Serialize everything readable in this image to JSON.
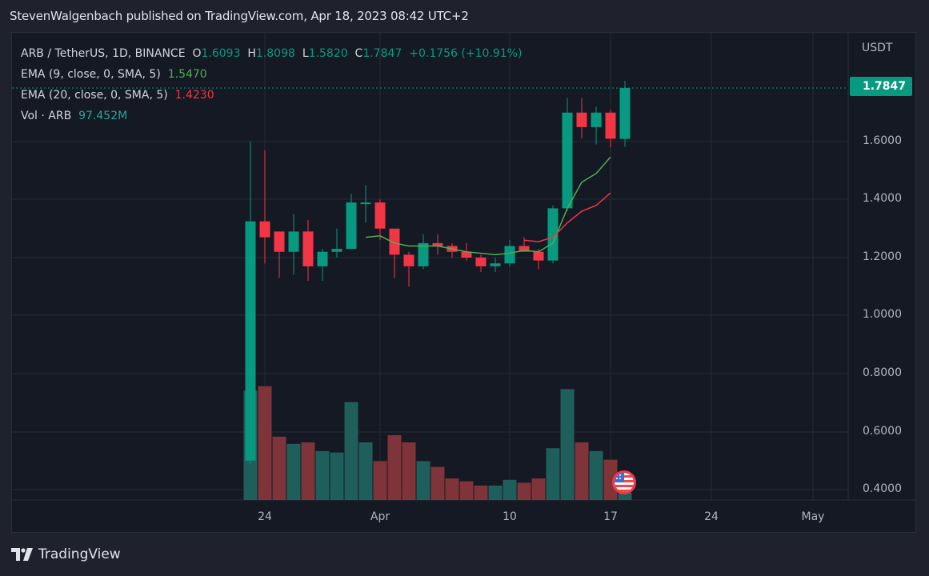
{
  "header": {
    "publish_text": "StevenWalgenbach published on TradingView.com, Apr 18, 2023 08:42 UTC+2"
  },
  "legend": {
    "symbol": "ARB / TetherUS, 1D, BINANCE",
    "o_label": "O",
    "o_value": "1.6093",
    "h_label": "H",
    "h_value": "1.8098",
    "l_label": "L",
    "l_value": "1.5820",
    "c_label": "C",
    "c_value": "1.7847",
    "change": "+0.1756 (+10.91%)",
    "ema9_label": "EMA (9, close, 0, SMA, 5)",
    "ema9_value": "1.5470",
    "ema20_label": "EMA (20, close, 0, SMA, 5)",
    "ema20_value": "1.4230",
    "vol_label": "Vol · ARB",
    "vol_value": "97.452M"
  },
  "axis": {
    "unit": "USDT",
    "last_price": "1.7847",
    "price_ticks": [
      "1.6000",
      "1.4000",
      "1.2000",
      "1.0000",
      "0.8000",
      "0.6000",
      "0.4000"
    ],
    "time_ticks": [
      "24",
      "Apr",
      "10",
      "17",
      "24",
      "May"
    ]
  },
  "colors": {
    "up": "#089981",
    "down": "#f23645",
    "vol_up": "#1f5f5b",
    "vol_down": "#7f343a",
    "ema9": "#4caf50",
    "ema20": "#f23645",
    "background": "#151924",
    "grid": "#262a35"
  },
  "footer": {
    "brand": "TradingView"
  },
  "chart_data": {
    "type": "candlestick",
    "title": "ARB / TetherUS, 1D, BINANCE",
    "ylabel": "USDT",
    "ylim": [
      0.35,
      1.85
    ],
    "grid": true,
    "x": [
      "Mar 23",
      "Mar 24",
      "Mar 25",
      "Mar 26",
      "Mar 27",
      "Mar 28",
      "Mar 29",
      "Mar 30",
      "Mar 31",
      "Apr 1",
      "Apr 2",
      "Apr 3",
      "Apr 4",
      "Apr 5",
      "Apr 6",
      "Apr 7",
      "Apr 8",
      "Apr 9",
      "Apr 10",
      "Apr 11",
      "Apr 12",
      "Apr 13",
      "Apr 14",
      "Apr 15",
      "Apr 16",
      "Apr 17",
      "Apr 18"
    ],
    "open": [
      0.5,
      1.325,
      1.29,
      1.22,
      1.29,
      1.17,
      1.22,
      1.23,
      1.39,
      1.39,
      1.3,
      1.21,
      1.17,
      1.25,
      1.24,
      1.22,
      1.2,
      1.17,
      1.18,
      1.24,
      1.22,
      1.19,
      1.37,
      1.7,
      1.65,
      1.7,
      1.6093
    ],
    "high": [
      1.6,
      1.57,
      1.26,
      1.35,
      1.33,
      1.23,
      1.3,
      1.42,
      1.45,
      1.4,
      1.29,
      1.22,
      1.28,
      1.28,
      1.25,
      1.25,
      1.21,
      1.2,
      1.26,
      1.27,
      1.23,
      1.38,
      1.75,
      1.75,
      1.72,
      1.71,
      1.8098
    ],
    "low": [
      0.49,
      1.18,
      1.13,
      1.14,
      1.12,
      1.12,
      1.2,
      1.23,
      1.32,
      1.26,
      1.13,
      1.1,
      1.16,
      1.21,
      1.2,
      1.19,
      1.15,
      1.15,
      1.17,
      1.22,
      1.16,
      1.18,
      1.36,
      1.61,
      1.59,
      1.58,
      1.582
    ],
    "close": [
      1.325,
      1.27,
      1.22,
      1.29,
      1.17,
      1.22,
      1.23,
      1.39,
      1.39,
      1.3,
      1.21,
      1.17,
      1.25,
      1.24,
      1.22,
      1.2,
      1.17,
      1.18,
      1.24,
      1.22,
      1.19,
      1.37,
      1.7,
      1.65,
      1.7,
      1.61,
      1.7847
    ],
    "volume_relative": [
      0.76,
      0.79,
      0.44,
      0.39,
      0.4,
      0.34,
      0.33,
      0.68,
      0.4,
      0.27,
      0.45,
      0.4,
      0.27,
      0.23,
      0.15,
      0.13,
      0.1,
      0.1,
      0.14,
      0.12,
      0.15,
      0.36,
      0.77,
      0.4,
      0.34,
      0.28,
      0.05
    ],
    "series": [
      {
        "name": "EMA (9, close, 0, SMA, 5)",
        "start_index": 8,
        "values": [
          1.27,
          1.275,
          1.25,
          1.24,
          1.24,
          1.24,
          1.23,
          1.22,
          1.215,
          1.21,
          1.215,
          1.225,
          1.22,
          1.25,
          1.37,
          1.46,
          1.49,
          1.547
        ]
      },
      {
        "name": "EMA (20, close, 0, SMA, 5)",
        "start_index": 19,
        "values": [
          1.26,
          1.255,
          1.27,
          1.32,
          1.36,
          1.38,
          1.423
        ]
      }
    ],
    "last_price": 1.7847
  }
}
